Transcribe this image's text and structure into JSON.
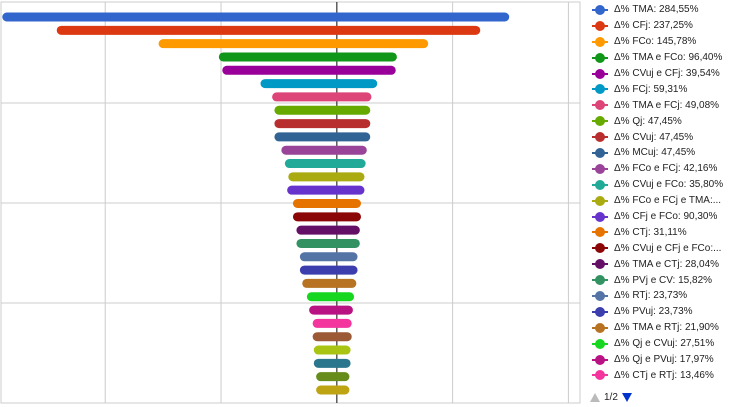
{
  "chart_data": {
    "type": "bar",
    "orientation": "horizontal",
    "center_value": 0,
    "xlim": [
      -290,
      210
    ],
    "gridlines_x": [
      -200,
      -100,
      0,
      100,
      200
    ],
    "grid": true,
    "legend_position": "right",
    "series": [
      {
        "label": "Δ% TMA: 284,55%",
        "color": "#3366cc",
        "range": [
          -285,
          145
        ]
      },
      {
        "label": "Δ% CFj: 237,25%",
        "color": "#dc3912",
        "range": [
          -238,
          120
        ]
      },
      {
        "label": "Δ% FCo: 145,78%",
        "color": "#ff9900",
        "range": [
          -150,
          75
        ]
      },
      {
        "label": "Δ% TMA e FCo: 96,40%",
        "color": "#109618",
        "range": [
          -98,
          48
        ]
      },
      {
        "label": "Δ% CVuj e CFj: 39,54%",
        "color": "#990099",
        "range": [
          -95,
          47
        ]
      },
      {
        "label": "Δ% FCj: 59,31%",
        "color": "#0099c6",
        "range": [
          -62,
          31
        ]
      },
      {
        "label": "Δ% TMA e FCj: 49,08%",
        "color": "#dd4477",
        "range": [
          -52,
          26
        ]
      },
      {
        "label": "Δ% Qj: 47,45%",
        "color": "#66aa00",
        "range": [
          -50,
          25
        ]
      },
      {
        "label": "Δ% CVuj: 47,45%",
        "color": "#b82e2e",
        "range": [
          -50,
          25
        ]
      },
      {
        "label": "Δ% MCuj: 47,45%",
        "color": "#316395",
        "range": [
          -50,
          25
        ]
      },
      {
        "label": "Δ% FCo e FCj: 42,16%",
        "color": "#994499",
        "range": [
          -44,
          22
        ]
      },
      {
        "label": "Δ% CVuj e FCo: 35,80%",
        "color": "#22aa99",
        "range": [
          -41,
          21
        ]
      },
      {
        "label": "Δ% FCo e FCj e TMA:...",
        "color": "#aaaa11",
        "range": [
          -38,
          20
        ]
      },
      {
        "label": "Δ% CFj e FCo: 90,30%",
        "color": "#6633cc",
        "range": [
          -39,
          20
        ]
      },
      {
        "label": "Δ% CTj: 31,11%",
        "color": "#e67300",
        "range": [
          -34,
          17
        ]
      },
      {
        "label": "Δ% CVuj e CFj e FCo:...",
        "color": "#8b0707",
        "range": [
          -34,
          17
        ]
      },
      {
        "label": "Δ% TMA e CTj: 28,04%",
        "color": "#651067",
        "range": [
          -31,
          16
        ]
      },
      {
        "label": "Δ% PVj e CV: 15,82%",
        "color": "#329262",
        "range": [
          -31,
          16
        ]
      },
      {
        "label": "Δ% RTj: 23,73%",
        "color": "#5574a6",
        "range": [
          -28,
          14
        ]
      },
      {
        "label": "Δ% PVuj: 23,73%",
        "color": "#3b3eac",
        "range": [
          -28,
          14
        ]
      },
      {
        "label": "Δ% TMA e RTj: 21,90%",
        "color": "#b77322",
        "range": [
          -26,
          13
        ]
      },
      {
        "label": "Δ% Qj e CVuj: 27,51%",
        "color": "#16d620",
        "range": [
          -22,
          11
        ]
      },
      {
        "label": "Δ% Qj e PVuj: 17,97%",
        "color": "#b91383",
        "range": [
          -20,
          10
        ]
      },
      {
        "label": "Δ% CTj e RTj: 13,46%",
        "color": "#f4359e",
        "range": [
          -17,
          9
        ]
      },
      {
        "label": "",
        "color": "#9c5935",
        "range": [
          -17,
          9
        ]
      },
      {
        "label": "",
        "color": "#a9c413",
        "range": [
          -16,
          8
        ]
      },
      {
        "label": "",
        "color": "#2a778d",
        "range": [
          -16,
          8
        ]
      },
      {
        "label": "",
        "color": "#668d1c",
        "range": [
          -14,
          7
        ]
      },
      {
        "label": "",
        "color": "#bea413",
        "range": [
          -14,
          7
        ]
      }
    ]
  },
  "legend": {
    "visible_count": 24,
    "pager": "1/2"
  }
}
